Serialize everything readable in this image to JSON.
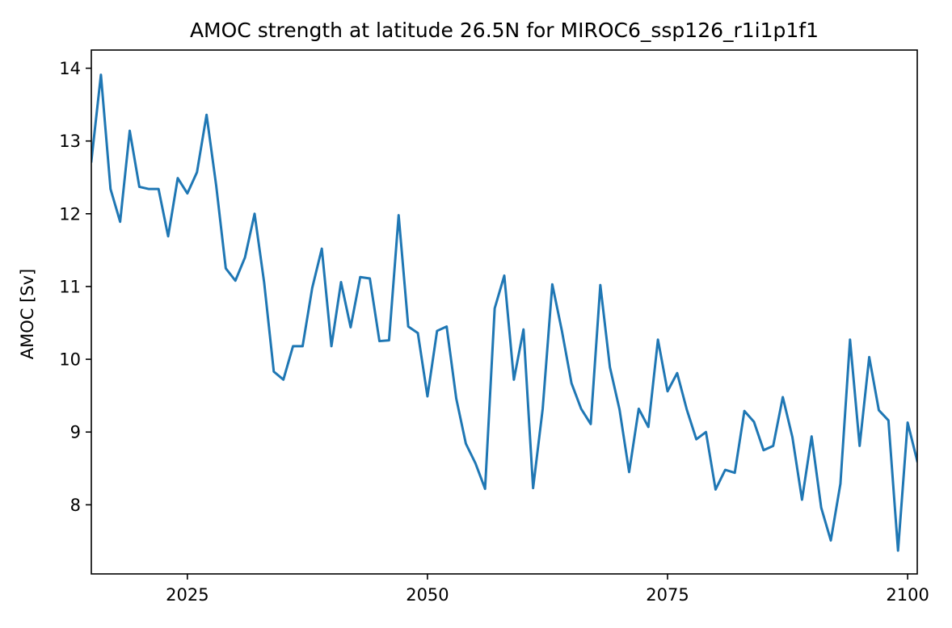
{
  "chart_data": {
    "type": "line",
    "title": "AMOC strength at latitude 26.5N for MIROC6_ssp126_r1i1p1f1",
    "xlabel": "",
    "ylabel": "AMOC [Sv]",
    "xlim": [
      2015,
      2101
    ],
    "ylim": [
      7.05,
      14.25
    ],
    "xticks": [
      2025,
      2050,
      2075,
      2100
    ],
    "yticks": [
      8,
      9,
      10,
      11,
      12,
      13,
      14
    ],
    "grid": false,
    "series": [
      {
        "color": "#1f77b4",
        "x": [
          2015,
          2016,
          2017,
          2018,
          2019,
          2020,
          2021,
          2022,
          2023,
          2024,
          2025,
          2026,
          2027,
          2028,
          2029,
          2030,
          2031,
          2032,
          2033,
          2034,
          2035,
          2036,
          2037,
          2038,
          2039,
          2040,
          2041,
          2042,
          2043,
          2044,
          2045,
          2046,
          2047,
          2048,
          2049,
          2050,
          2051,
          2052,
          2053,
          2054,
          2055,
          2056,
          2057,
          2058,
          2059,
          2060,
          2061,
          2062,
          2063,
          2064,
          2065,
          2066,
          2067,
          2068,
          2069,
          2070,
          2071,
          2072,
          2073,
          2074,
          2075,
          2076,
          2077,
          2078,
          2079,
          2080,
          2081,
          2082,
          2083,
          2084,
          2085,
          2086,
          2087,
          2088,
          2089,
          2090,
          2091,
          2092,
          2093,
          2094,
          2095,
          2096,
          2097,
          2098,
          2099,
          2100,
          2101
        ],
        "y": [
          12.72,
          13.91,
          12.34,
          11.89,
          13.14,
          12.37,
          12.34,
          12.34,
          11.69,
          12.49,
          12.28,
          12.57,
          13.36,
          12.39,
          11.25,
          11.08,
          11.4,
          12.0,
          11.05,
          9.83,
          9.72,
          10.18,
          10.18,
          10.98,
          11.52,
          10.18,
          11.06,
          10.44,
          11.13,
          11.11,
          10.25,
          10.26,
          11.98,
          10.45,
          10.36,
          9.49,
          10.39,
          10.45,
          9.46,
          8.84,
          8.57,
          8.22,
          10.7,
          11.15,
          9.72,
          10.41,
          8.23,
          9.32,
          11.03,
          10.39,
          9.67,
          9.32,
          9.11,
          11.02,
          9.89,
          9.31,
          8.45,
          9.32,
          9.07,
          10.27,
          9.56,
          9.81,
          9.31,
          8.9,
          9.0,
          8.21,
          8.48,
          8.44,
          9.29,
          9.14,
          8.75,
          8.81,
          9.48,
          8.93,
          8.07,
          8.94,
          7.96,
          7.51,
          8.29,
          10.27,
          8.81,
          10.03,
          9.3,
          9.16,
          7.37,
          9.13,
          8.6
        ]
      }
    ]
  }
}
